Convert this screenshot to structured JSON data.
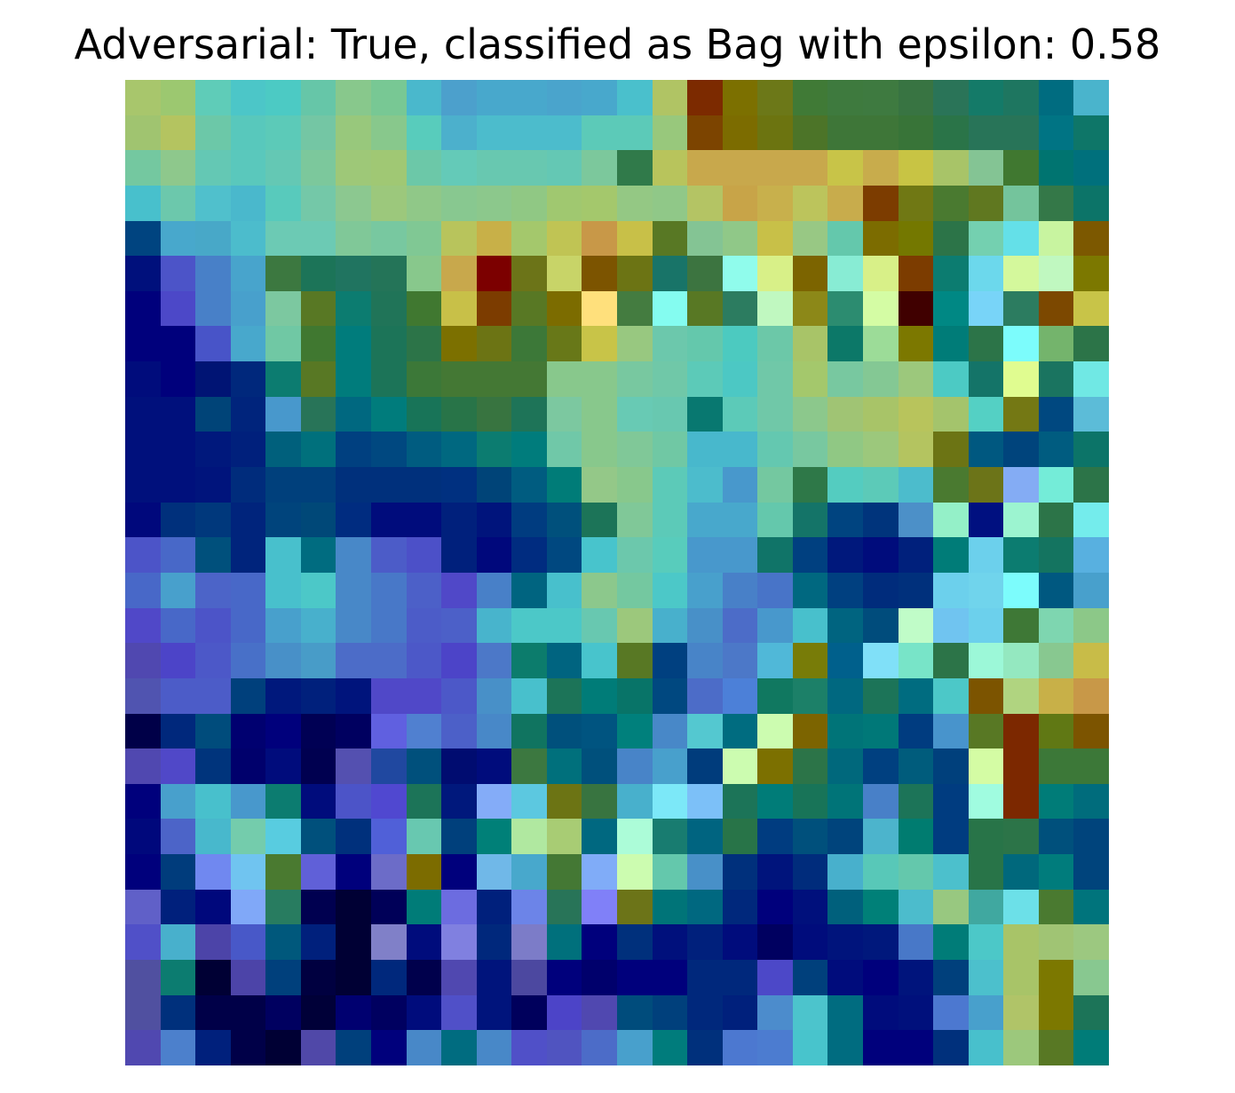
{
  "figure": {
    "title": "Adversarial: True, classified as Bag with epsilon: 0.58"
  },
  "image": {
    "rows": 28,
    "cols": 28,
    "pixels": [
      [
        "#a8c66c",
        "#9cc870",
        "#5fccb8",
        "#4cc6c8",
        "#4ccac4",
        "#66c6a8",
        "#88c88c",
        "#78c894",
        "#4ab8cc",
        "#4ca0cc",
        "#48a8cc",
        "#48a8cc",
        "#4aa4cc",
        "#48a8cc",
        "#4ac0cc",
        "#b0c464",
        "#7c2a00",
        "#7c7000",
        "#6c7818",
        "#407a36",
        "#3e7a3e",
        "#3e7a40",
        "#387442",
        "#2a7458",
        "#147a68",
        "#1e7660",
        "#006c80",
        "#4ab4cc"
      ],
      [
        "#a0c470",
        "#b4c460",
        "#6cc8a8",
        "#58c8bc",
        "#5ccab8",
        "#74c6a4",
        "#98c87c",
        "#88c88c",
        "#58ccbc",
        "#4cb0cc",
        "#4cbccc",
        "#4cbccc",
        "#4cbccc",
        "#5ccab8",
        "#5ccab8",
        "#98c87c",
        "#7c4400",
        "#7c6c00",
        "#6c7410",
        "#4c7428",
        "#3e7638",
        "#3e7638",
        "#387438",
        "#2a7448",
        "#287458",
        "#287458",
        "#007484",
        "#0e7668"
      ],
      [
        "#74c8a0",
        "#8ec88c",
        "#64c8b4",
        "#5ac8bc",
        "#64c8b4",
        "#7cc89c",
        "#9ec878",
        "#a0c874",
        "#6cc8a8",
        "#64cab8",
        "#68c8b0",
        "#68c8b0",
        "#64c8b4",
        "#7cc89c",
        "#307a4a",
        "#b8c45c",
        "#c8a84c",
        "#c8a84c",
        "#c8a84c",
        "#c8a84c",
        "#c8c448",
        "#c8ac4c",
        "#c8c444",
        "#a8c468",
        "#84c494",
        "#407830",
        "#007470",
        "#00707c"
      ],
      [
        "#48c0cc",
        "#6cc8ac",
        "#50c0cc",
        "#4ab8cc",
        "#58cabc",
        "#74c8a8",
        "#8cc890",
        "#9cc87c",
        "#90c888",
        "#88c890",
        "#8cc88c",
        "#90c884",
        "#a0c870",
        "#a4c86c",
        "#94c884",
        "#90c888",
        "#b4c464",
        "#c8a448",
        "#c8b04c",
        "#bcc45c",
        "#c8ac4c",
        "#7c3c00",
        "#707814",
        "#4a7a30",
        "#607820",
        "#74c49c",
        "#347848",
        "#0c7468"
      ],
      [
        "#004480",
        "#48a8cc",
        "#48a8c8",
        "#4cbccc",
        "#6ccab4",
        "#6ccab4",
        "#80c898",
        "#78c8a0",
        "#80c894",
        "#b8c45c",
        "#c8b048",
        "#a4c86c",
        "#c0c454",
        "#c89848",
        "#c8c048",
        "#587824",
        "#84c494",
        "#90c888",
        "#c8c048",
        "#98c884",
        "#64c8ac",
        "#7c6c00",
        "#747800",
        "#2c7448",
        "#74d0b0",
        "#64e0e8",
        "#c8f4a0",
        "#7c5800"
      ],
      [
        "#00107c",
        "#4c54c8",
        "#4880c8",
        "#48a4cc",
        "#3c7840",
        "#1c7458",
        "#207460",
        "#247458",
        "#88c88c",
        "#c8a84c",
        "#7c0000",
        "#6c7418",
        "#c8d468",
        "#7c5400",
        "#6c7414",
        "#187468",
        "#3c7440",
        "#90fcec",
        "#d8f088",
        "#7c6400",
        "#88ecd4",
        "#d8f088",
        "#7c3c00",
        "#0c7c70",
        "#6cd8ec",
        "#d4f89c",
        "#c0f8c0",
        "#7c7800"
      ],
      [
        "#00007c",
        "#4c48c8",
        "#4880c8",
        "#48a0cc",
        "#7cc8a0",
        "#587824",
        "#0c7c70",
        "#207458",
        "#407830",
        "#c8c048",
        "#7c3c00",
        "#587824",
        "#7c6c00",
        "#ffe07c",
        "#447c40",
        "#84fcf0",
        "#587824",
        "#2c7c60",
        "#c0f8c0",
        "#8c8818",
        "#2c8c70",
        "#d4fca4",
        "#400000",
        "#008884",
        "#78d4f8",
        "#2c7c60",
        "#7c4800",
        "#c8c448"
      ],
      [
        "#00007c",
        "#00007c",
        "#4854c8",
        "#48a8cc",
        "#70c8a4",
        "#407830",
        "#007c7c",
        "#1c7458",
        "#2c7448",
        "#7c7000",
        "#6c7414",
        "#3c7838",
        "#687818",
        "#c8c448",
        "#98c880",
        "#6cc8ac",
        "#64c8ac",
        "#4ccac0",
        "#6cc8a8",
        "#a8c468",
        "#0c7868",
        "#9cdc98",
        "#7c7800",
        "#007c78",
        "#2c7448",
        "#7cfcfc",
        "#74b46c",
        "#2c7448"
      ],
      [
        "#000c7c",
        "#00007c",
        "#001474",
        "#00287c",
        "#0c7c70",
        "#587824",
        "#007c7c",
        "#1c7458",
        "#3c7838",
        "#447834",
        "#447834",
        "#447834",
        "#88c88c",
        "#88c88c",
        "#78c8a0",
        "#70c8a8",
        "#5ccab8",
        "#4cc8c4",
        "#70c8a8",
        "#a4c86c",
        "#78c8a0",
        "#84c894",
        "#9cc87c",
        "#4ccac4",
        "#147468",
        "#e0fc90",
        "#1a7460",
        "#70e8e4"
      ],
      [
        "#00107c",
        "#00107c",
        "#004478",
        "#00247c",
        "#4898cc",
        "#287458",
        "#006880",
        "#007c7c",
        "#187458",
        "#287448",
        "#387440",
        "#1e7458",
        "#7cc8a0",
        "#88c88c",
        "#68cab4",
        "#68c8b0",
        "#087870",
        "#5ccab8",
        "#70c8a8",
        "#8cc88c",
        "#a0c474",
        "#a8c468",
        "#b8c45c",
        "#a4c46c",
        "#54d0c4",
        "#747814",
        "#004880",
        "#5cbcd8"
      ],
      [
        "#00107c",
        "#00107c",
        "#00187c",
        "#00207c",
        "#00607c",
        "#00707c",
        "#004080",
        "#004880",
        "#005c80",
        "#006880",
        "#0c7c70",
        "#007c7c",
        "#70c8a8",
        "#88c88c",
        "#80c898",
        "#70c8a4",
        "#48b8cc",
        "#48b8cc",
        "#64c8b0",
        "#78c8a0",
        "#90c884",
        "#9cc87c",
        "#b4c460",
        "#6c7414",
        "#005880",
        "#00447c",
        "#005c80",
        "#0c7468"
      ],
      [
        "#00107c",
        "#00107c",
        "#00147c",
        "#002c7c",
        "#00407c",
        "#00407c",
        "#00307c",
        "#00307c",
        "#00307c",
        "#003080",
        "#004478",
        "#005c80",
        "#007c78",
        "#94c888",
        "#88c88c",
        "#5ccab8",
        "#4cbccc",
        "#4898cc",
        "#74c8a0",
        "#2e7848",
        "#54ccc0",
        "#5ccab8",
        "#4cbccc",
        "#4a7a30",
        "#6c7418",
        "#84acf4",
        "#74ecd8",
        "#2c7448"
      ],
      [
        "#00087c",
        "#00307c",
        "#00387c",
        "#00247c",
        "#00447c",
        "#004878",
        "#002c80",
        "#000c7c",
        "#000c7c",
        "#00207c",
        "#00147c",
        "#003c80",
        "#00507c",
        "#1c7458",
        "#80c898",
        "#5ccab8",
        "#48a8cc",
        "#48a8cc",
        "#64c8ac",
        "#147468",
        "#004480",
        "#00347c",
        "#4c90c8",
        "#94f0c8",
        "#001080",
        "#9cf4d0",
        "#2c7448",
        "#74ecec"
      ],
      [
        "#4c54c8",
        "#4868c8",
        "#00507c",
        "#00247c",
        "#48c0cc",
        "#006c80",
        "#4888c8",
        "#4c5cc8",
        "#4c50c8",
        "#00207c",
        "#00087c",
        "#002c80",
        "#004880",
        "#48c4cc",
        "#6cc8ac",
        "#58ccbc",
        "#4898cc",
        "#4898cc",
        "#107468",
        "#004080",
        "#00187c",
        "#000c7c",
        "#00207c",
        "#007c78",
        "#6cd0ec",
        "#0c7c70",
        "#147460",
        "#58b0e0"
      ],
      [
        "#4868c8",
        "#48a0cc",
        "#4c64c8",
        "#4868c8",
        "#48c0cc",
        "#4cc8c8",
        "#4888c8",
        "#4878c8",
        "#4c60c8",
        "#5048c8",
        "#4880c8",
        "#006480",
        "#48c0cc",
        "#8cc88c",
        "#74c8a0",
        "#4cc8c8",
        "#48a0cc",
        "#4880c8",
        "#4874c8",
        "#006880",
        "#004080",
        "#002c7c",
        "#00307c",
        "#6cd0ec",
        "#70d4ec",
        "#7cfcfc",
        "#005880",
        "#48a0cc"
      ],
      [
        "#5048c8",
        "#4868c8",
        "#4c54c8",
        "#4868c8",
        "#48a0cc",
        "#48b0cc",
        "#4888c8",
        "#4878c8",
        "#4c5cc8",
        "#4c60c8",
        "#48b4cc",
        "#4cc8c8",
        "#4cc8c8",
        "#68c8b0",
        "#9cc87c",
        "#48b0cc",
        "#4890c8",
        "#4c6cc8",
        "#4898cc",
        "#48c0cc",
        "#006480",
        "#004c7c",
        "#c0fcc8",
        "#70c4f0",
        "#6cd0ec",
        "#3e7836",
        "#7ed6b0",
        "#8cc888"
      ],
      [
        "#5048b0",
        "#4c44c8",
        "#4c58c8",
        "#4870c8",
        "#4890c8",
        "#489cc8",
        "#4c6cc8",
        "#4c6cc8",
        "#4c58c8",
        "#4c44c8",
        "#4c78c8",
        "#0c7c6c",
        "#006480",
        "#48c4cc",
        "#587824",
        "#004080",
        "#4884c8",
        "#4c78c8",
        "#50b8d8",
        "#787c08",
        "#00608c",
        "#80e0f8",
        "#78e4c8",
        "#2c7448",
        "#9cf8d8",
        "#94e8c0",
        "#88c890",
        "#c8bc48"
      ],
      [
        "#5054b0",
        "#4c5cc8",
        "#4c5cc8",
        "#00407c",
        "#00187c",
        "#00207c",
        "#00147c",
        "#5048c8",
        "#5048c8",
        "#4c58c8",
        "#4890c8",
        "#48c0cc",
        "#1c7458",
        "#007c78",
        "#087468",
        "#004880",
        "#4c6cc8",
        "#4c80d8",
        "#107860",
        "#1c8068",
        "#006880",
        "#1c7458",
        "#006c80",
        "#4cc8c8",
        "#7c5400",
        "#b0d480",
        "#c8b048",
        "#c89848"
      ],
      [
        "#000048",
        "#00287c",
        "#004c7c",
        "#000070",
        "#00007c",
        "#000054",
        "#000060",
        "#6060e0",
        "#5080d0",
        "#4c60c8",
        "#4888c8",
        "#107460",
        "#00507c",
        "#005480",
        "#00807c",
        "#4888c8",
        "#54c8d0",
        "#006c80",
        "#ccfcb0",
        "#7c6400",
        "#007478",
        "#007878",
        "#003c80",
        "#4894cc",
        "#587824",
        "#7c2800",
        "#607814",
        "#7c5400"
      ],
      [
        "#5048b0",
        "#5048c8",
        "#00347c",
        "#00006c",
        "#000c7c",
        "#000050",
        "#5450b0",
        "#2048a0",
        "#00507c",
        "#000c70",
        "#000c7c",
        "#3c7840",
        "#00707c",
        "#00507c",
        "#4884c8",
        "#48a0cc",
        "#003c7c",
        "#ccfcb0",
        "#7c7000",
        "#2c7448",
        "#00687c",
        "#004080",
        "#005c7c",
        "#00407c",
        "#d4fca4",
        "#7c2800",
        "#3c7838",
        "#3c7838"
      ],
      [
        "#00007c",
        "#48a0cc",
        "#48c0cc",
        "#4898cc",
        "#0c7c70",
        "#000c7c",
        "#4c54c8",
        "#5048d0",
        "#1c7458",
        "#00187c",
        "#84acf8",
        "#5cc8e0",
        "#6c7414",
        "#387440",
        "#48b0cc",
        "#7ce8f8",
        "#7cc0f8",
        "#1c7458",
        "#007c78",
        "#187458",
        "#007478",
        "#4880c8",
        "#1c7458",
        "#003c80",
        "#a0fce0",
        "#7c2800",
        "#007c78",
        "#006c7c"
      ],
      [
        "#00087c",
        "#4c64c8",
        "#48b8cc",
        "#74ccac",
        "#58cce0",
        "#00507c",
        "#00307c",
        "#5060d8",
        "#68c8b0",
        "#00407c",
        "#008078",
        "#b0e8a0",
        "#a8cc74",
        "#006880",
        "#acfcd8",
        "#187c70",
        "#006480",
        "#287448",
        "#003c80",
        "#00507c",
        "#00447c",
        "#4cb4cc",
        "#007c70",
        "#003c80",
        "#287448",
        "#2c7448",
        "#00507c",
        "#00447c"
      ],
      [
        "#00007c",
        "#003c7c",
        "#7088f0",
        "#70c4f0",
        "#4a7a30",
        "#6060d8",
        "#00007c",
        "#6c6cc8",
        "#7c6c00",
        "#00007c",
        "#70b8e8",
        "#48a8cc",
        "#447834",
        "#80acf8",
        "#ccfcb0",
        "#64c8ac",
        "#4890c8",
        "#00307c",
        "#00147c",
        "#002c7c",
        "#48b0cc",
        "#58c8b8",
        "#64c8ac",
        "#4cc0cc",
        "#287448",
        "#00687c",
        "#007c7c",
        "#00447c"
      ],
      [
        "#6060c8",
        "#00207c",
        "#00087c",
        "#80a8f8",
        "#287c60",
        "#000050",
        "#000034",
        "#000058",
        "#007c78",
        "#6c6ce0",
        "#00207c",
        "#6c84e8",
        "#287458",
        "#8080f8",
        "#6c7418",
        "#007478",
        "#006880",
        "#00287c",
        "#00007c",
        "#00107c",
        "#00607c",
        "#008078",
        "#4cbccc",
        "#98c880",
        "#40a8a0",
        "#6ce0e8",
        "#4a7a30",
        "#00747c"
      ],
      [
        "#5050c8",
        "#48b0cc",
        "#4c44a8",
        "#4858c8",
        "#00587c",
        "#00207c",
        "#000034",
        "#8080c8",
        "#000c7c",
        "#8080e0",
        "#00287c",
        "#7c7cc8",
        "#00707c",
        "#00007c",
        "#00307c",
        "#00107c",
        "#00207c",
        "#000c7c",
        "#000060",
        "#000c7c",
        "#00147c",
        "#00187c",
        "#4878c8",
        "#007c78",
        "#4cc8c8",
        "#a8c468",
        "#a0c474",
        "#9cc880"
      ],
      [
        "#5050a0",
        "#0c7c70",
        "#000034",
        "#4c44a8",
        "#00407c",
        "#000040",
        "#000034",
        "#00287c",
        "#00004c",
        "#5048b0",
        "#00147c",
        "#4c48a0",
        "#00007c",
        "#00006c",
        "#00007c",
        "#00007c",
        "#00287c",
        "#00287c",
        "#4c48c8",
        "#00407c",
        "#000c7c",
        "#00007c",
        "#00147c",
        "#00407c",
        "#4cc0cc",
        "#a8c468",
        "#7c7800",
        "#88c890"
      ],
      [
        "#5050a0",
        "#00307c",
        "#000048",
        "#000048",
        "#000060",
        "#000038",
        "#000070",
        "#000060",
        "#000c7c",
        "#5050c8",
        "#00147c",
        "#00005c",
        "#4c44c8",
        "#5048b0",
        "#004c7c",
        "#00407c",
        "#00287c",
        "#00207c",
        "#4c8ccc",
        "#4cc4cc",
        "#006c80",
        "#000c7c",
        "#00107c",
        "#4c78d0",
        "#48a0cc",
        "#b0c468",
        "#7c7800",
        "#1c7458"
      ],
      [
        "#5048b0",
        "#4c80cc",
        "#00207c",
        "#000048",
        "#000034",
        "#5048a8",
        "#00407c",
        "#00007c",
        "#4888c8",
        "#006c80",
        "#4888c8",
        "#5050c8",
        "#5054c0",
        "#4c6cc8",
        "#48a0cc",
        "#007c7c",
        "#00307c",
        "#4c78d0",
        "#4c7cd0",
        "#48c4cc",
        "#006c80",
        "#00007c",
        "#00007c",
        "#00307c",
        "#48c0cc",
        "#9cc87c",
        "#587824",
        "#007c78"
      ]
    ]
  }
}
